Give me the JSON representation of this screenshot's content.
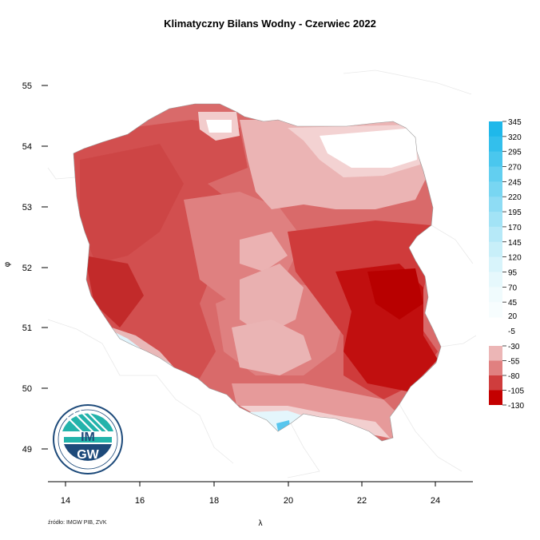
{
  "title": "Klimatyczny Bilans Wodny - Czerwiec 2022",
  "axes": {
    "x_label": "λ",
    "y_label": "φ",
    "x_ticks": [
      "14",
      "16",
      "18",
      "20",
      "22",
      "24"
    ],
    "y_ticks": [
      "55",
      "54",
      "53",
      "52",
      "51",
      "50",
      "49"
    ]
  },
  "legend": {
    "positive": [
      {
        "value": "345",
        "color": "#1fb8ea"
      },
      {
        "value": "320",
        "color": "#33bfec"
      },
      {
        "value": "295",
        "color": "#4ac7ee"
      },
      {
        "value": "270",
        "color": "#62cff0"
      },
      {
        "value": "245",
        "color": "#78d6f2"
      },
      {
        "value": "220",
        "color": "#8edcf4"
      },
      {
        "value": "195",
        "color": "#a2e3f6"
      },
      {
        "value": "170",
        "color": "#b6e9f8"
      },
      {
        "value": "145",
        "color": "#c8eff9"
      },
      {
        "value": "120",
        "color": "#d8f4fb"
      },
      {
        "value": "95",
        "color": "#e6f8fc"
      },
      {
        "value": "70",
        "color": "#f0fbfd"
      },
      {
        "value": "45",
        "color": "#f7fdfe"
      }
    ],
    "zero_label": "20",
    "neutral_label": "-5",
    "negative": [
      {
        "value": "-30",
        "color": "#ecb6b6"
      },
      {
        "value": "-55",
        "color": "#e08080"
      },
      {
        "value": "-80",
        "color": "#cf3d3d"
      },
      {
        "value": "-105",
        "color": "#c40000"
      },
      {
        "value": "-130",
        "color": ""
      }
    ]
  },
  "logo": {
    "text": "IMGW"
  },
  "source": "źródło: IMGW PIB, ZVK"
}
